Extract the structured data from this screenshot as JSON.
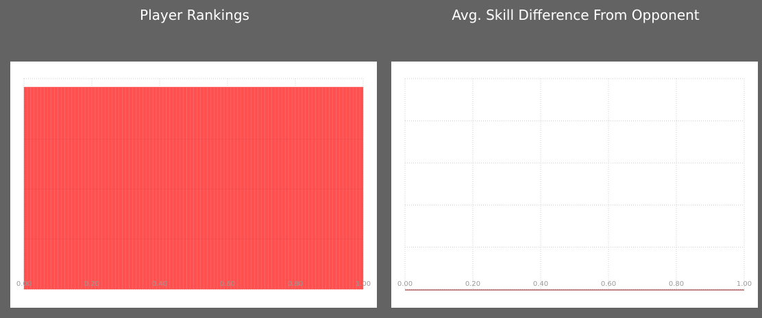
{
  "colors": {
    "background": "#636363",
    "card": "#ffffff",
    "bar_fill": "#ff5050",
    "grid": "#cccccc",
    "tick_text": "#9a9a9a",
    "baseline": "#a04040"
  },
  "chart_data": [
    {
      "type": "bar",
      "title": "Player Rankings",
      "xlim": [
        0,
        1
      ],
      "ylim": [
        0,
        1
      ],
      "x_tick_labels": [
        "0.00",
        "0.20",
        "0.40",
        "0.60",
        "0.80",
        "1.00"
      ],
      "bar_count": 100,
      "values_uniform": 0.96,
      "grid": true
    },
    {
      "type": "bar",
      "title": "Avg. Skill Difference From Opponent",
      "xlim": [
        0,
        1
      ],
      "ylim": [
        0,
        1
      ],
      "x_tick_labels": [
        "0.00",
        "0.20",
        "0.40",
        "0.60",
        "0.80",
        "1.00"
      ],
      "values_uniform": 0,
      "grid": true
    }
  ]
}
